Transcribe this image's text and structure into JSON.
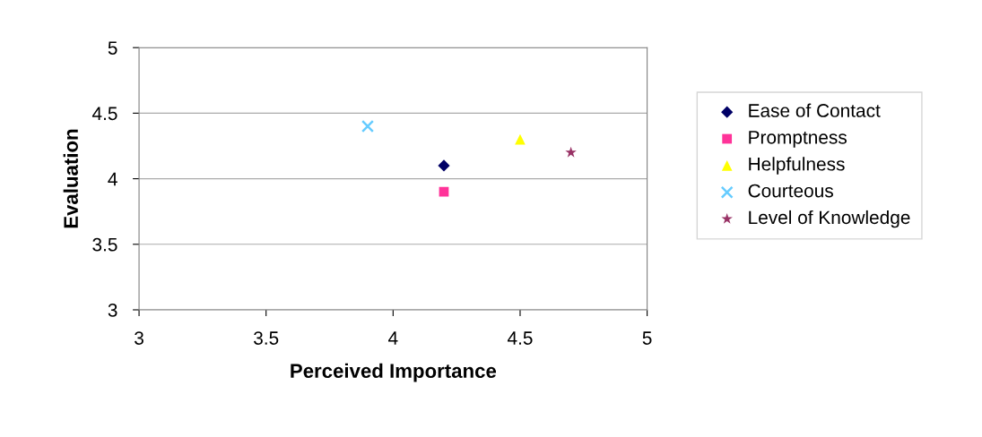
{
  "chart_data": {
    "type": "scatter",
    "xlabel": "Perceived Importance",
    "ylabel": "Evaluation",
    "xlim": [
      3,
      5
    ],
    "xticks": [
      3,
      3.5,
      4,
      4.5,
      5
    ],
    "ylim": [
      3,
      5
    ],
    "yticks": [
      3,
      3.5,
      4,
      4.5,
      5
    ],
    "grid": "y",
    "legend": "right",
    "series": [
      {
        "name": "Ease of Contact",
        "color": "#000066",
        "marker": "diamond",
        "x": [
          4.2
        ],
        "values": [
          4.1
        ]
      },
      {
        "name": "Promptness",
        "color": "#ff3399",
        "marker": "square",
        "x": [
          4.2
        ],
        "values": [
          3.9
        ]
      },
      {
        "name": "Helpfulness",
        "color": "#ffff00",
        "marker": "triangle",
        "x": [
          4.5
        ],
        "values": [
          4.3
        ]
      },
      {
        "name": "Courteous",
        "color": "#66ccff",
        "marker": "cross",
        "x": [
          3.9
        ],
        "values": [
          4.4
        ]
      },
      {
        "name": "Level of Knowledge",
        "color": "#993366",
        "marker": "star",
        "x": [
          4.7
        ],
        "values": [
          4.2
        ]
      }
    ]
  }
}
